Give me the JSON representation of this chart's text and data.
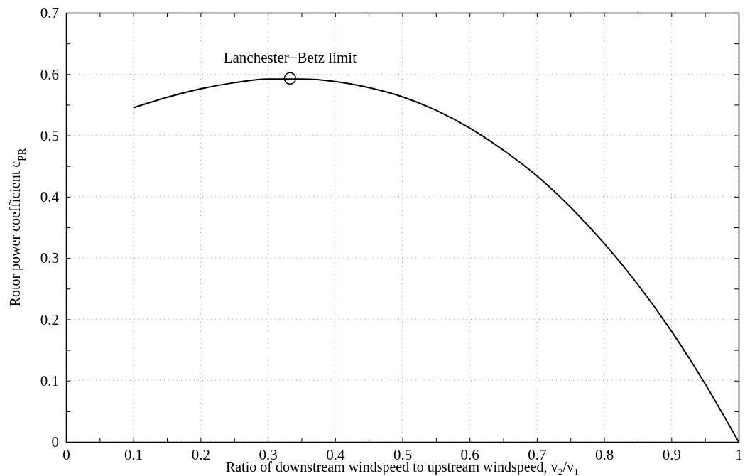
{
  "chart_data": {
    "type": "line",
    "xlabel": "Ratio of downstream windspeed to upstream windspeed, v₂/v₁",
    "ylabel": "Rotor power coefficient c$_{PR}$",
    "xlim": [
      0,
      1
    ],
    "ylim": [
      0,
      0.7
    ],
    "xticks": [
      0,
      {
        "value": 0.05,
        "label": null
      },
      0.1,
      {
        "value": 0.15,
        "label": null
      },
      0.2,
      {
        "value": 0.25,
        "label": null
      },
      0.3,
      {
        "value": 0.35,
        "label": null
      },
      0.4,
      {
        "value": 0.45,
        "label": null
      },
      0.5,
      {
        "value": 0.55,
        "label": null
      },
      0.6,
      {
        "value": 0.65,
        "label": null
      },
      0.7,
      {
        "value": 0.75,
        "label": null
      },
      0.8,
      {
        "value": 0.85,
        "label": null
      },
      0.9,
      {
        "value": 0.95,
        "label": null
      },
      1
    ],
    "yticks": [
      0,
      {
        "value": 0.05,
        "label": null
      },
      0.1,
      {
        "value": 0.15,
        "label": null
      },
      0.2,
      {
        "value": 0.25,
        "label": null
      },
      0.3,
      {
        "value": 0.35,
        "label": null
      },
      0.4,
      {
        "value": 0.45,
        "label": null
      },
      0.5,
      {
        "value": 0.55,
        "label": null
      },
      0.6,
      {
        "value": 0.65,
        "label": null
      },
      0.7
    ],
    "grid": true,
    "series": [
      {
        "color": "#000000",
        "marker": "none",
        "line_style": "solid",
        "x": [
          0.1,
          0.15,
          0.2,
          0.25,
          0.3,
          0.35,
          0.4,
          0.45,
          0.5,
          0.55,
          0.6,
          0.65,
          0.7,
          0.75,
          0.8,
          0.85,
          0.9,
          0.95,
          1
        ],
        "values": [
          0.545,
          0.562,
          0.576,
          0.586,
          0.592,
          0.592,
          0.588,
          0.578,
          0.563,
          0.541,
          0.512,
          0.476,
          0.434,
          0.383,
          0.324,
          0.257,
          0.181,
          0.095,
          0
        ]
      },
      {
        "type": "scatter",
        "color": "#000000",
        "marker": "circle",
        "x": [
          0.333
        ],
        "values": [
          0.593
        ]
      }
    ],
    "annotations": [
      {
        "text": "Lanchester−Betz limit",
        "x": 0.333,
        "y": 0.593
      }
    ]
  }
}
